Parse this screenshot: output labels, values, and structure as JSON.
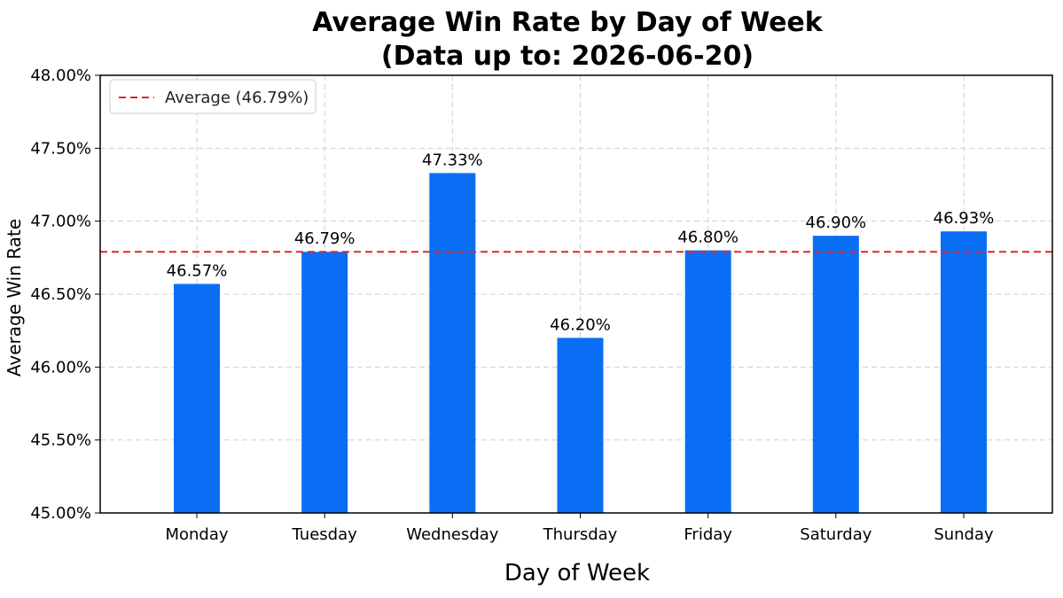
{
  "chart_data": {
    "type": "bar",
    "title_lines": [
      "Average Win Rate by Day of Week",
      "(Data up to: 2026-06-20)"
    ],
    "xlabel": "Day of Week",
    "ylabel": "Average Win Rate",
    "categories": [
      "Monday",
      "Tuesday",
      "Wednesday",
      "Thursday",
      "Friday",
      "Saturday",
      "Sunday"
    ],
    "values": [
      46.57,
      46.79,
      47.33,
      46.2,
      46.8,
      46.9,
      46.93
    ],
    "value_labels": [
      "46.57%",
      "46.79%",
      "47.33%",
      "46.20%",
      "46.80%",
      "46.90%",
      "46.93%"
    ],
    "ylim": [
      45.0,
      48.0
    ],
    "yticks": [
      45.0,
      45.5,
      46.0,
      46.5,
      47.0,
      47.5,
      48.0
    ],
    "ytick_labels": [
      "45.00%",
      "45.50%",
      "46.00%",
      "46.50%",
      "47.00%",
      "47.50%",
      "48.00%"
    ],
    "average": 46.79,
    "legend": {
      "label": "Average (46.79%)",
      "placement": "top-left"
    },
    "grid": true,
    "colors": {
      "bar": "#0a6ef5",
      "average_line": "#e0262b"
    }
  }
}
